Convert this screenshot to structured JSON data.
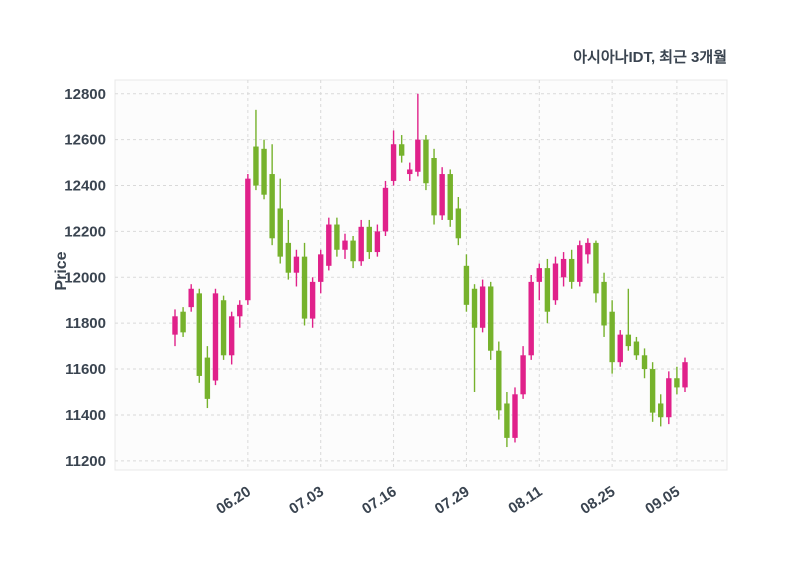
{
  "header": {
    "title": "아시아나IDT, 최근 3개월"
  },
  "chart_data": {
    "type": "candlestick",
    "title": "아시아나IDT, 최근 3개월",
    "xlabel": "",
    "ylabel": "Price",
    "ylim": [
      11160,
      12860
    ],
    "y_ticks": [
      11200,
      11400,
      11600,
      11800,
      12000,
      12200,
      12400,
      12600,
      12800
    ],
    "x_tick_labels": [
      "06.20",
      "07.03",
      "07.16",
      "07.29",
      "08.11",
      "08.25",
      "09.05"
    ],
    "x_tick_indices": [
      9,
      18,
      27,
      36,
      45,
      54,
      62
    ],
    "grid": true,
    "legend": "none",
    "colors": {
      "up": "#e0218a",
      "down": "#76b22c",
      "grid": "#d9d9d9",
      "text": "#3a4450",
      "plot_bg": "#fcfcfc",
      "border": "#e8e8e8"
    },
    "candles_format": [
      "open",
      "high",
      "low",
      "close"
    ],
    "candles": [
      [
        11750,
        11860,
        11700,
        11830
      ],
      [
        11850,
        11870,
        11740,
        11760
      ],
      [
        11870,
        11970,
        11850,
        11950
      ],
      [
        11930,
        11950,
        11540,
        11570
      ],
      [
        11650,
        11700,
        11430,
        11470
      ],
      [
        11550,
        11950,
        11530,
        11930
      ],
      [
        11900,
        11920,
        11640,
        11660
      ],
      [
        11660,
        11850,
        11620,
        11830
      ],
      [
        11830,
        11900,
        11780,
        11880
      ],
      [
        11900,
        12450,
        11880,
        12430
      ],
      [
        12570,
        12730,
        12380,
        12400
      ],
      [
        12560,
        12600,
        12340,
        12360
      ],
      [
        12450,
        12580,
        12140,
        12170
      ],
      [
        12300,
        12430,
        12060,
        12090
      ],
      [
        12150,
        12250,
        11990,
        12020
      ],
      [
        12020,
        12120,
        11960,
        12090
      ],
      [
        12090,
        12150,
        11790,
        11820
      ],
      [
        11820,
        12000,
        11780,
        11980
      ],
      [
        11980,
        12120,
        11930,
        12100
      ],
      [
        12050,
        12260,
        12030,
        12230
      ],
      [
        12230,
        12260,
        12090,
        12120
      ],
      [
        12120,
        12190,
        12080,
        12160
      ],
      [
        12160,
        12180,
        12040,
        12070
      ],
      [
        12070,
        12250,
        12050,
        12220
      ],
      [
        12220,
        12250,
        12080,
        12110
      ],
      [
        12110,
        12230,
        12090,
        12200
      ],
      [
        12200,
        12420,
        12180,
        12390
      ],
      [
        12420,
        12640,
        12400,
        12580
      ],
      [
        12580,
        12620,
        12500,
        12530
      ],
      [
        12450,
        12500,
        12420,
        12470
      ],
      [
        12460,
        12800,
        12440,
        12600
      ],
      [
        12600,
        12620,
        12380,
        12410
      ],
      [
        12520,
        12560,
        12230,
        12270
      ],
      [
        12270,
        12480,
        12250,
        12450
      ],
      [
        12450,
        12470,
        12220,
        12250
      ],
      [
        12300,
        12350,
        12140,
        12170
      ],
      [
        12050,
        12100,
        11850,
        11880
      ],
      [
        11950,
        11970,
        11500,
        11780
      ],
      [
        11780,
        11990,
        11760,
        11960
      ],
      [
        11960,
        11980,
        11640,
        11680
      ],
      [
        11680,
        11720,
        11380,
        11420
      ],
      [
        11450,
        11500,
        11260,
        11300
      ],
      [
        11300,
        11520,
        11280,
        11490
      ],
      [
        11490,
        11700,
        11470,
        11660
      ],
      [
        11660,
        12010,
        11640,
        11980
      ],
      [
        11980,
        12060,
        11900,
        12040
      ],
      [
        12040,
        12080,
        11800,
        11850
      ],
      [
        11900,
        12090,
        11880,
        12060
      ],
      [
        12000,
        12110,
        11960,
        12080
      ],
      [
        12080,
        12120,
        11950,
        11980
      ],
      [
        11980,
        12160,
        11960,
        12140
      ],
      [
        12100,
        12170,
        12060,
        12150
      ],
      [
        12150,
        12160,
        11890,
        11930
      ],
      [
        11980,
        12020,
        11740,
        11790
      ],
      [
        11850,
        11900,
        11580,
        11630
      ],
      [
        11630,
        11770,
        11610,
        11750
      ],
      [
        11750,
        11950,
        11680,
        11700
      ],
      [
        11720,
        11740,
        11640,
        11660
      ],
      [
        11660,
        11690,
        11560,
        11600
      ],
      [
        11600,
        11630,
        11370,
        11410
      ],
      [
        11450,
        11490,
        11350,
        11390
      ],
      [
        11390,
        11590,
        11360,
        11560
      ],
      [
        11560,
        11610,
        11490,
        11520
      ],
      [
        11520,
        11650,
        11500,
        11630
      ]
    ]
  }
}
